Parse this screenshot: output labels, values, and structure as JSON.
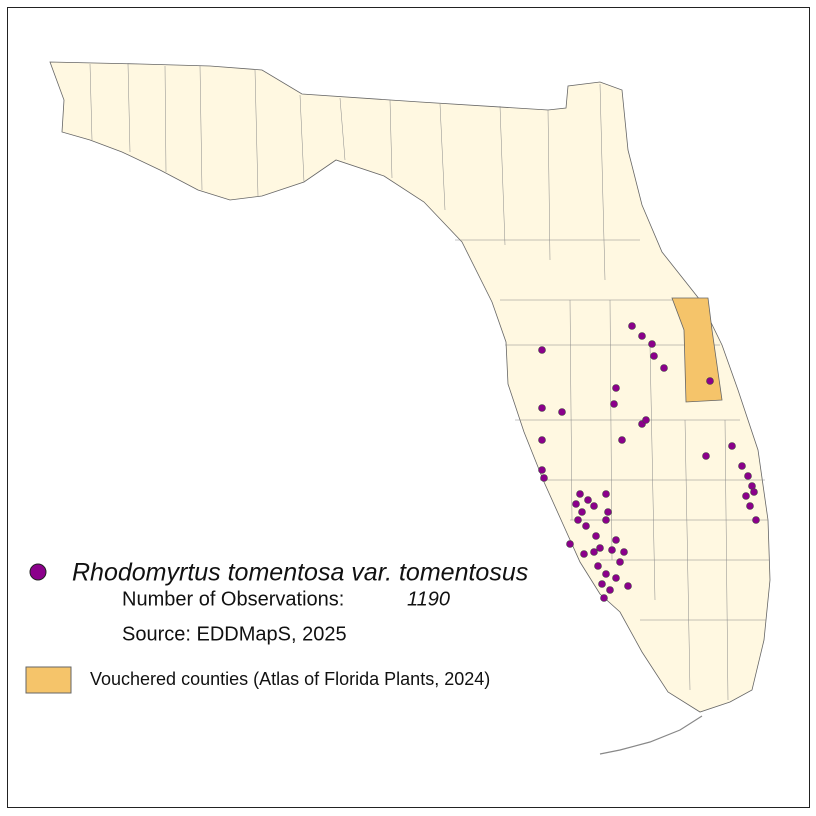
{
  "legend": {
    "species": "Rhodomyrtus tomentosa var. tomentosus",
    "observations_label": "Number of Observations:",
    "observations_count": 1190,
    "source": "Source: EDDMapS, 2025",
    "vouchered": "Vouchered counties (Atlas of Florida Plants, 2024)"
  }
}
